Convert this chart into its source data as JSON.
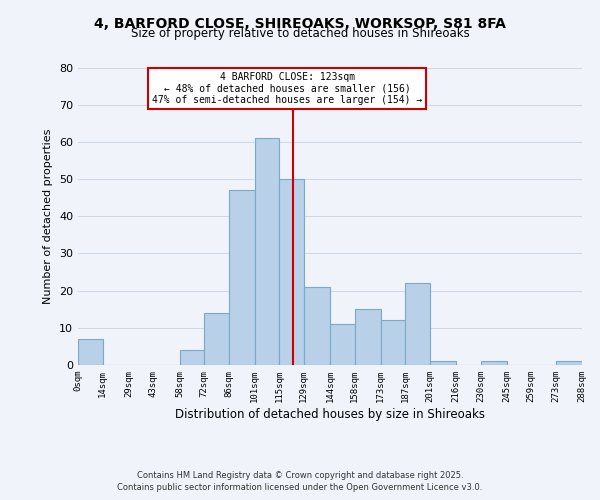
{
  "title": "4, BARFORD CLOSE, SHIREOAKS, WORKSOP, S81 8FA",
  "subtitle": "Size of property relative to detached houses in Shireoaks",
  "xlabel": "Distribution of detached houses by size in Shireoaks",
  "ylabel": "Number of detached properties",
  "bin_edges": [
    0,
    14,
    29,
    43,
    58,
    72,
    86,
    101,
    115,
    129,
    144,
    158,
    173,
    187,
    201,
    216,
    230,
    245,
    259,
    273,
    288
  ],
  "counts": [
    7,
    0,
    0,
    0,
    4,
    14,
    47,
    61,
    50,
    21,
    11,
    15,
    12,
    22,
    1,
    0,
    1,
    0,
    0,
    1
  ],
  "bar_color": "#b8d0e8",
  "bar_edge_color": "#7aaac8",
  "property_line_x": 123,
  "property_line_color": "#cc0000",
  "annotation_title": "4 BARFORD CLOSE: 123sqm",
  "annotation_line1": "← 48% of detached houses are smaller (156)",
  "annotation_line2": "47% of semi-detached houses are larger (154) →",
  "annotation_box_color": "#cc0000",
  "ylim": [
    0,
    80
  ],
  "yticks": [
    0,
    10,
    20,
    30,
    40,
    50,
    60,
    70,
    80
  ],
  "tick_labels": [
    "0sqm",
    "14sqm",
    "29sqm",
    "43sqm",
    "58sqm",
    "72sqm",
    "86sqm",
    "101sqm",
    "115sqm",
    "129sqm",
    "144sqm",
    "158sqm",
    "173sqm",
    "187sqm",
    "201sqm",
    "216sqm",
    "230sqm",
    "245sqm",
    "259sqm",
    "273sqm",
    "288sqm"
  ],
  "grid_color": "#d0d8e8",
  "background_color": "#f0f4fa",
  "footer1": "Contains HM Land Registry data © Crown copyright and database right 2025.",
  "footer2": "Contains public sector information licensed under the Open Government Licence v3.0."
}
